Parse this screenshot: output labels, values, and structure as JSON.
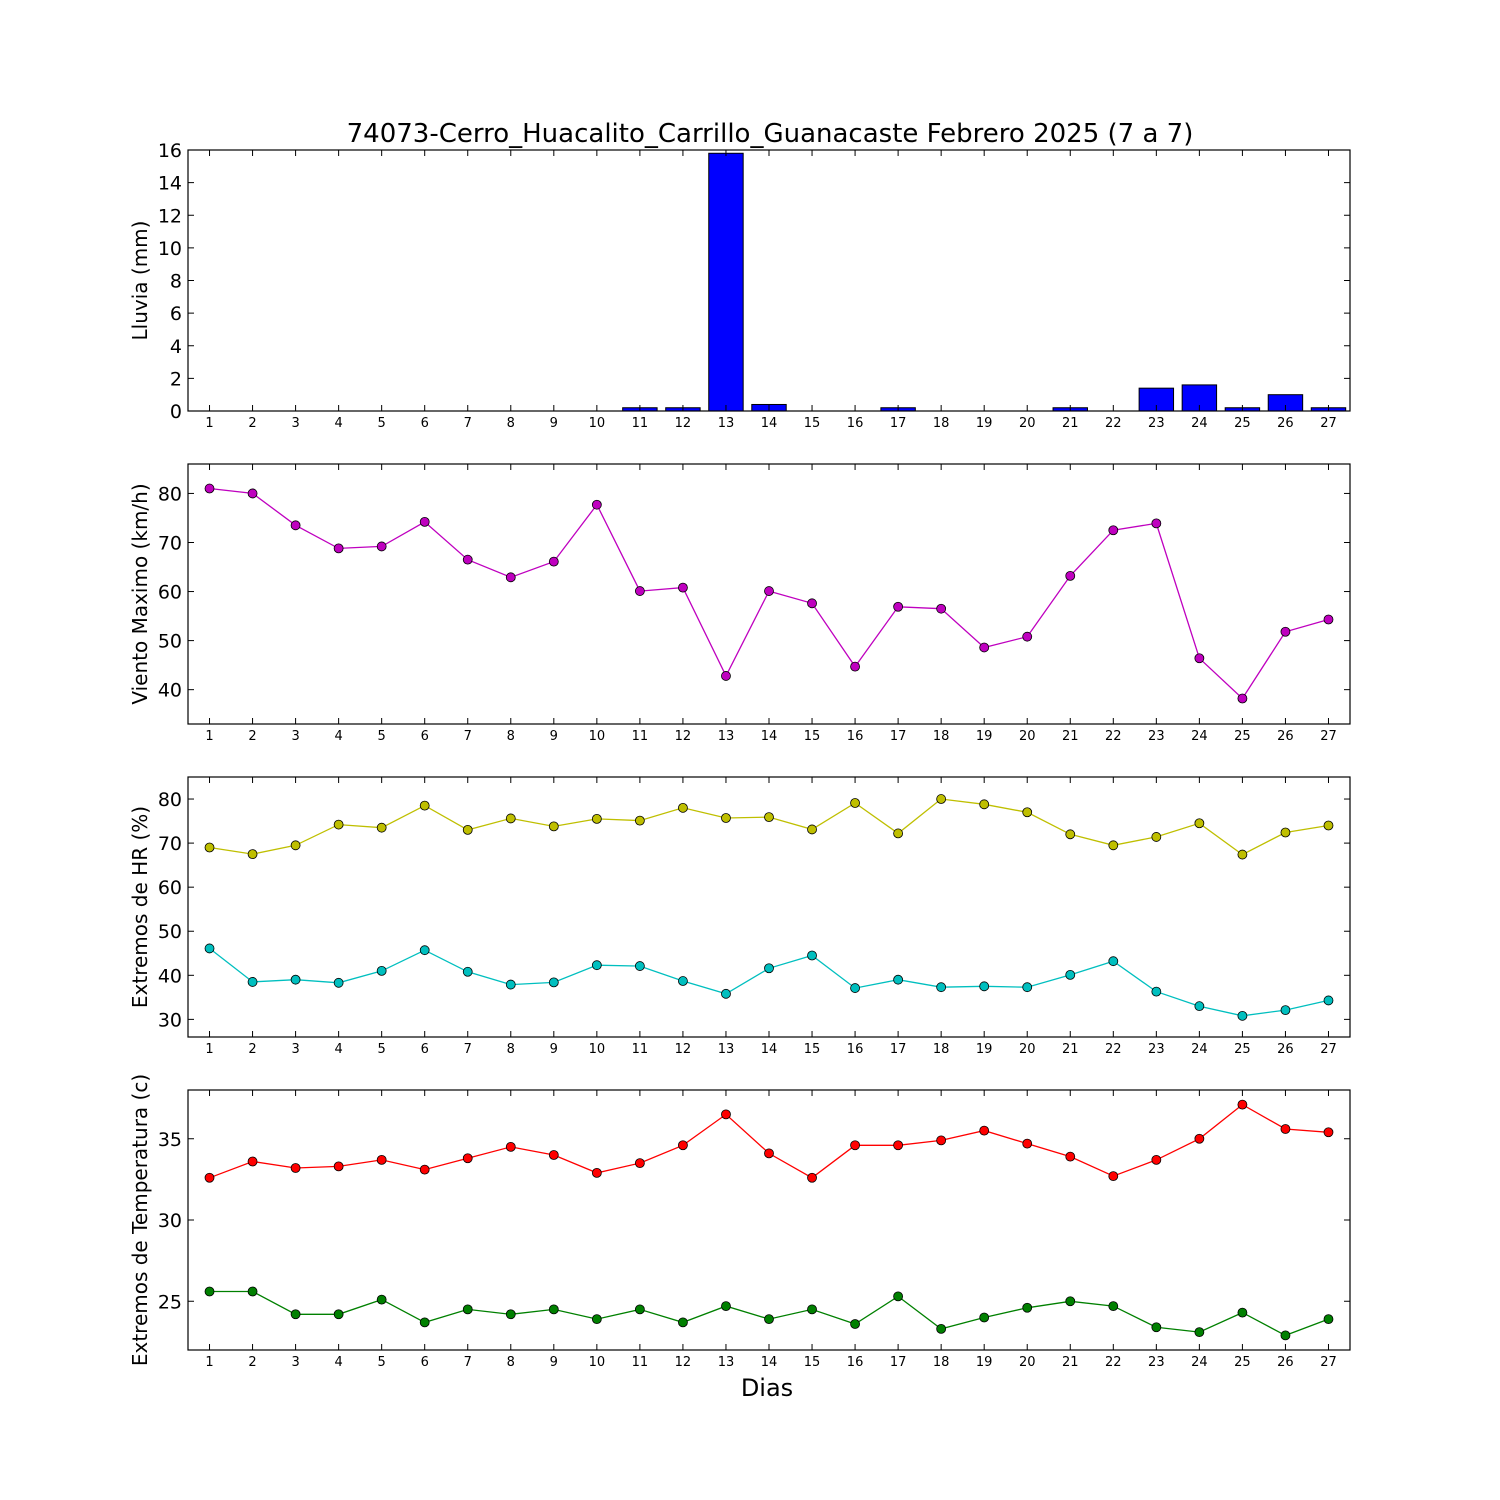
{
  "chart_data": [
    {
      "type": "bar",
      "title": "74073-Cerro_Huacalito_Carrillo_Guanacaste Febrero 2025  (7 a 7)",
      "ylabel": "Lluvia (mm)",
      "xlabel": "",
      "x": [
        1,
        2,
        3,
        4,
        5,
        6,
        7,
        8,
        9,
        10,
        11,
        12,
        13,
        14,
        15,
        16,
        17,
        18,
        19,
        20,
        21,
        22,
        23,
        24,
        25,
        26,
        27
      ],
      "xlim": [
        0.5,
        27.5
      ],
      "ylim": [
        0,
        16
      ],
      "yticks": [
        0,
        2,
        4,
        6,
        8,
        10,
        12,
        14,
        16
      ],
      "grid": false,
      "series": [
        {
          "color": "#0000ff",
          "values": [
            0,
            0,
            0,
            0,
            0,
            0,
            0,
            0,
            0,
            0,
            0.2,
            0.2,
            15.8,
            0.4,
            0,
            0,
            0.2,
            0,
            0,
            0,
            0.2,
            0,
            1.4,
            1.6,
            0.2,
            1.0,
            0.2
          ]
        }
      ]
    },
    {
      "type": "line",
      "ylabel": "Viento Maximo (km/h)",
      "xlabel": "",
      "x": [
        1,
        2,
        3,
        4,
        5,
        6,
        7,
        8,
        9,
        10,
        11,
        12,
        13,
        14,
        15,
        16,
        17,
        18,
        19,
        20,
        21,
        22,
        23,
        24,
        25,
        26,
        27
      ],
      "xlim": [
        0.5,
        27.5
      ],
      "ylim": [
        33,
        86
      ],
      "yticks": [
        40,
        50,
        60,
        70,
        80
      ],
      "grid": false,
      "series": [
        {
          "color": "#bf00bf",
          "values": [
            81,
            80,
            73.5,
            68.8,
            69.2,
            74.2,
            66.5,
            62.9,
            66.1,
            77.7,
            60.1,
            60.8,
            42.8,
            60.1,
            57.6,
            44.7,
            56.9,
            56.5,
            48.6,
            50.8,
            63.2,
            72.5,
            73.9,
            46.4,
            38.2,
            51.8,
            54.3
          ]
        }
      ]
    },
    {
      "type": "line",
      "ylabel": "Extremos de HR (%)",
      "xlabel": "",
      "x": [
        1,
        2,
        3,
        4,
        5,
        6,
        7,
        8,
        9,
        10,
        11,
        12,
        13,
        14,
        15,
        16,
        17,
        18,
        19,
        20,
        21,
        22,
        23,
        24,
        25,
        26,
        27
      ],
      "xlim": [
        0.5,
        27.5
      ],
      "ylim": [
        26,
        85
      ],
      "yticks": [
        30,
        40,
        50,
        60,
        70,
        80
      ],
      "grid": false,
      "series": [
        {
          "color": "#bfbf00",
          "values": [
            69,
            67.5,
            69.5,
            74.2,
            73.5,
            78.5,
            73,
            75.6,
            73.8,
            75.5,
            75.1,
            78,
            75.7,
            75.9,
            73.1,
            79.1,
            72.2,
            80,
            78.8,
            77,
            72,
            69.5,
            71.4,
            74.5,
            67.4,
            72.4,
            74
          ]
        },
        {
          "color": "#00bfbf",
          "values": [
            46.1,
            38.5,
            39,
            38.3,
            41,
            45.7,
            40.8,
            37.9,
            38.4,
            42.3,
            42.1,
            38.7,
            35.8,
            41.6,
            44.5,
            37.1,
            39,
            37.3,
            37.5,
            37.3,
            40.1,
            43.2,
            36.3,
            33,
            30.8,
            32.1,
            34.3
          ]
        }
      ]
    },
    {
      "type": "line",
      "ylabel": "Extremos de Temperatura (c)",
      "xlabel": "Dias",
      "x": [
        1,
        2,
        3,
        4,
        5,
        6,
        7,
        8,
        9,
        10,
        11,
        12,
        13,
        14,
        15,
        16,
        17,
        18,
        19,
        20,
        21,
        22,
        23,
        24,
        25,
        26,
        27
      ],
      "xlim": [
        0.5,
        27.5
      ],
      "ylim": [
        22,
        38
      ],
      "yticks": [
        25,
        30,
        35
      ],
      "grid": false,
      "series": [
        {
          "color": "#ff0000",
          "values": [
            32.6,
            33.6,
            33.2,
            33.3,
            33.7,
            33.1,
            33.8,
            34.5,
            34,
            32.9,
            33.5,
            34.6,
            36.5,
            34.1,
            32.6,
            34.6,
            34.6,
            34.9,
            35.5,
            34.7,
            33.9,
            32.7,
            33.7,
            35,
            37.1,
            35.6,
            35.4
          ]
        },
        {
          "color": "#008000",
          "values": [
            25.6,
            25.6,
            24.2,
            24.2,
            25.1,
            23.7,
            24.5,
            24.2,
            24.5,
            23.9,
            24.5,
            23.7,
            24.7,
            23.9,
            24.5,
            23.6,
            25.3,
            23.3,
            24,
            24.6,
            25,
            24.7,
            23.4,
            23.1,
            24.3,
            22.9,
            23.9
          ]
        }
      ]
    }
  ]
}
